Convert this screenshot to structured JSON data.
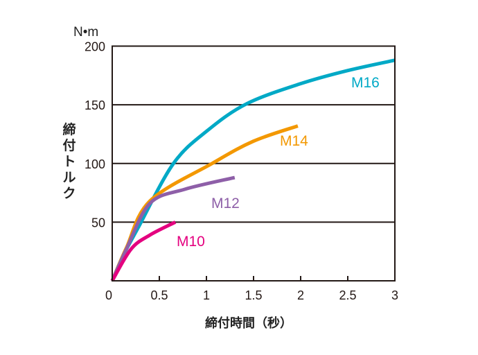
{
  "chart_data": {
    "type": "line",
    "title": "",
    "xlabel": "締付時間（秒）",
    "ylabel": "締付トルク",
    "yunit": "N•m",
    "xlim": [
      0,
      3
    ],
    "ylim": [
      0,
      200
    ],
    "xticks": [
      "0",
      "0.5",
      "1",
      "1.5",
      "2",
      "2.5",
      "3"
    ],
    "yticks": [
      "50",
      "100",
      "150",
      "200"
    ],
    "grid": "horizontal",
    "legend": "inline labels",
    "series": [
      {
        "name": "M16",
        "color": "#00A9C6",
        "points": [
          [
            0,
            0
          ],
          [
            0.12,
            22
          ],
          [
            0.28,
            46
          ],
          [
            0.65,
            100
          ],
          [
            1.01,
            128
          ],
          [
            1.43,
            151
          ],
          [
            2.0,
            168
          ],
          [
            2.49,
            179
          ],
          [
            3.0,
            188
          ]
        ]
      },
      {
        "name": "M14",
        "color": "#F39800",
        "points": [
          [
            0,
            0
          ],
          [
            0.15,
            28
          ],
          [
            0.4,
            68
          ],
          [
            1.06,
            100
          ],
          [
            1.5,
            119
          ],
          [
            1.97,
            132
          ]
        ]
      },
      {
        "name": "M12",
        "color": "#8E5FA8",
        "points": [
          [
            0,
            0
          ],
          [
            0.15,
            27
          ],
          [
            0.4,
            66
          ],
          [
            0.77,
            78
          ],
          [
            1.3,
            88
          ]
        ]
      },
      {
        "name": "M10",
        "color": "#E4007F",
        "points": [
          [
            0,
            0
          ],
          [
            0.2,
            27
          ],
          [
            0.4,
            39
          ],
          [
            0.67,
            50
          ]
        ]
      }
    ]
  }
}
